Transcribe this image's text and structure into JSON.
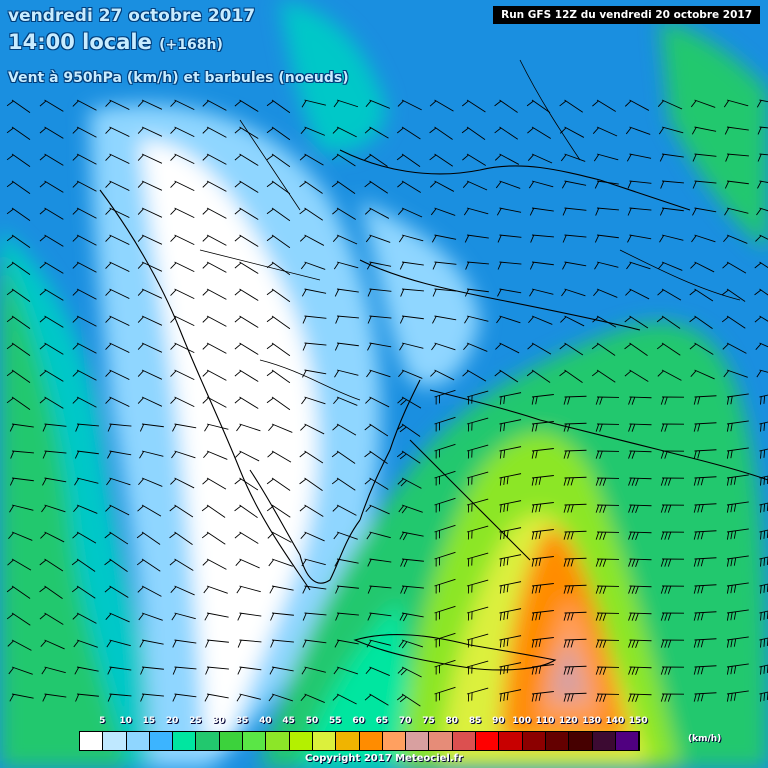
{
  "header": {
    "date": "vendredi 27 octobre 2017",
    "time": "14:00 locale",
    "offset": "(+168h)",
    "parameter": "Vent à 950hPa (km/h) et barbules (noeuds)",
    "run": "Run GFS 12Z du vendredi 20 octobre 2017"
  },
  "legend": {
    "ticks": [
      "5",
      "10",
      "15",
      "20",
      "25",
      "30",
      "35",
      "40",
      "45",
      "50",
      "55",
      "60",
      "65",
      "70",
      "75",
      "80",
      "85",
      "90",
      "100",
      "110",
      "120",
      "130",
      "140",
      "150"
    ],
    "colors": [
      "#ffffff",
      "#bfe8ff",
      "#8fd6ff",
      "#3cb4ff",
      "#00e6a0",
      "#22c86e",
      "#3cd23c",
      "#5ae646",
      "#8ce628",
      "#b4f000",
      "#dcf03c",
      "#f0b400",
      "#ff8c00",
      "#ffa060",
      "#d8a0a0",
      "#e68c78",
      "#dc5050",
      "#ff0000",
      "#c80000",
      "#8c0000",
      "#640000",
      "#460000",
      "#3c0a32",
      "#500080"
    ],
    "unit": "(km/h)"
  },
  "copyright": "Copyright 2017 Meteociel.fr",
  "colors": {
    "background": "#1a8fe0",
    "title_text": "#c8ecff",
    "wind_barb": "#000000",
    "coastline": "#000000"
  }
}
